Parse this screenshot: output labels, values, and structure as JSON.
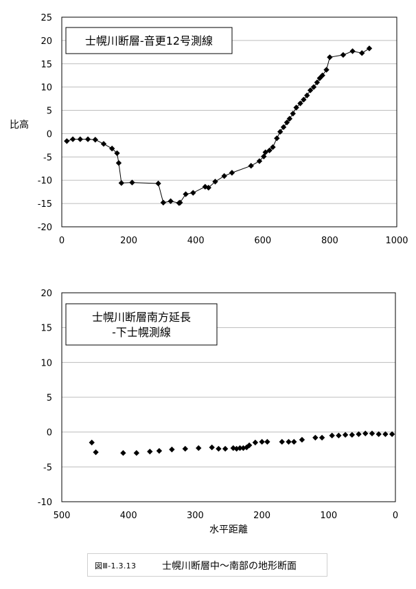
{
  "chart_data": [
    {
      "type": "line",
      "title": "士幌川断層-音更12号測線",
      "ylabel": "比高",
      "xlabel": "",
      "xlim": [
        0,
        1000
      ],
      "ylim": [
        -20,
        25
      ],
      "xticks": [
        "0",
        "200",
        "400",
        "600",
        "800",
        "1000"
      ],
      "yticks": [
        "-20",
        "-15",
        "-10",
        "-5",
        "0",
        "5",
        "10",
        "15",
        "20",
        "25"
      ],
      "grid": true,
      "series": [
        {
          "markers": "diamond",
          "points": [
            [
              15,
              -1.6
            ],
            [
              33,
              -1.2
            ],
            [
              55,
              -1.2
            ],
            [
              78,
              -1.2
            ],
            [
              100,
              -1.3
            ],
            [
              125,
              -2.2
            ],
            [
              150,
              -3.2
            ],
            [
              165,
              -4.2
            ],
            [
              170,
              -6.3
            ],
            [
              178,
              -10.6
            ],
            [
              210,
              -10.5
            ],
            [
              288,
              -10.7
            ],
            [
              303,
              -14.8
            ],
            [
              325,
              -14.5
            ],
            [
              350,
              -14.9
            ],
            [
              353,
              -14.8
            ],
            [
              370,
              -13.0
            ],
            [
              392,
              -12.7
            ],
            [
              428,
              -11.4
            ],
            [
              438,
              -11.6
            ],
            [
              458,
              -10.3
            ],
            [
              485,
              -9.1
            ],
            [
              508,
              -8.4
            ],
            [
              565,
              -6.9
            ],
            [
              590,
              -5.9
            ],
            [
              603,
              -4.9
            ],
            [
              608,
              -4.0
            ],
            [
              620,
              -3.6
            ],
            [
              630,
              -2.9
            ],
            [
              642,
              -1.0
            ],
            [
              652,
              0.4
            ],
            [
              662,
              1.4
            ],
            [
              672,
              2.4
            ],
            [
              680,
              3.2
            ],
            [
              690,
              4.3
            ],
            [
              700,
              5.6
            ],
            [
              712,
              6.5
            ],
            [
              722,
              7.3
            ],
            [
              732,
              8.2
            ],
            [
              742,
              9.3
            ],
            [
              752,
              10.0
            ],
            [
              762,
              11.0
            ],
            [
              770,
              11.9
            ],
            [
              778,
              12.5
            ],
            [
              790,
              13.7
            ],
            [
              800,
              16.4
            ],
            [
              840,
              16.9
            ],
            [
              868,
              17.7
            ],
            [
              896,
              17.3
            ],
            [
              918,
              18.3
            ]
          ]
        }
      ]
    },
    {
      "type": "scatter",
      "title": "士幌川断層南方延長\n-下士幌測線",
      "ylabel": "",
      "xlabel": "水平距離",
      "xlim": [
        500,
        0
      ],
      "ylim": [
        -10,
        20
      ],
      "xticks": [
        "500",
        "400",
        "300",
        "200",
        "100",
        "0"
      ],
      "yticks": [
        "-10",
        "-5",
        "0",
        "5",
        "10",
        "15",
        "20"
      ],
      "grid": true,
      "series": [
        {
          "markers": "diamond",
          "points": [
            [
              455,
              -1.5
            ],
            [
              449,
              -2.9
            ],
            [
              408,
              -3.0
            ],
            [
              388,
              -3.0
            ],
            [
              368,
              -2.8
            ],
            [
              354,
              -2.7
            ],
            [
              335,
              -2.5
            ],
            [
              315,
              -2.4
            ],
            [
              295,
              -2.3
            ],
            [
              275,
              -2.2
            ],
            [
              265,
              -2.4
            ],
            [
              255,
              -2.4
            ],
            [
              243,
              -2.3
            ],
            [
              238,
              -2.4
            ],
            [
              233,
              -2.3
            ],
            [
              228,
              -2.3
            ],
            [
              223,
              -2.2
            ],
            [
              219,
              -1.9
            ],
            [
              210,
              -1.5
            ],
            [
              200,
              -1.4
            ],
            [
              192,
              -1.4
            ],
            [
              170,
              -1.4
            ],
            [
              160,
              -1.4
            ],
            [
              152,
              -1.4
            ],
            [
              140,
              -1.1
            ],
            [
              120,
              -0.8
            ],
            [
              110,
              -0.8
            ],
            [
              95,
              -0.5
            ],
            [
              85,
              -0.5
            ],
            [
              75,
              -0.4
            ],
            [
              65,
              -0.4
            ],
            [
              55,
              -0.3
            ],
            [
              45,
              -0.2
            ],
            [
              35,
              -0.2
            ],
            [
              25,
              -0.3
            ],
            [
              15,
              -0.3
            ],
            [
              5,
              -0.3
            ]
          ]
        }
      ]
    }
  ],
  "caption": {
    "number": "図Ⅲ-1.3.13",
    "text": "士幌川断層中～南部の地形断面"
  }
}
